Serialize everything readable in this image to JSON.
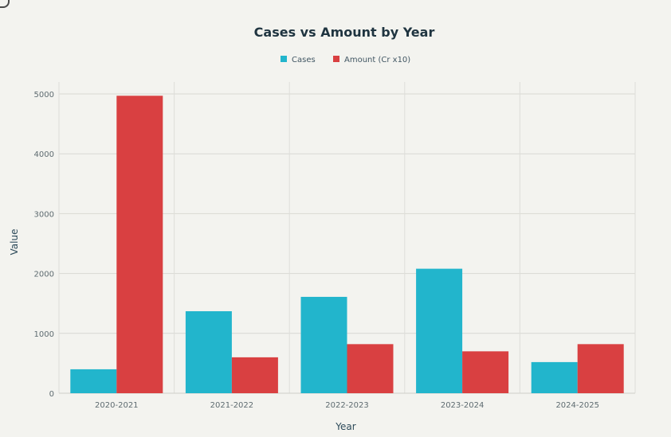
{
  "chart_data": {
    "type": "bar",
    "title": "Cases vs Amount by Year",
    "xlabel": "Year",
    "ylabel": "Value",
    "categories": [
      "2020-2021",
      "2021-2022",
      "2022-2023",
      "2023-2024",
      "2024-2025"
    ],
    "series": [
      {
        "name": "Cases",
        "color": "#22b5cc",
        "values": [
          400,
          1370,
          1610,
          2080,
          520
        ]
      },
      {
        "name": "Amount (Cr x10)",
        "color": "#d94041",
        "values": [
          4970,
          600,
          820,
          700,
          820
        ]
      }
    ],
    "ylim": [
      0,
      5200
    ],
    "yticks": [
      0,
      1000,
      2000,
      3000,
      4000,
      5000
    ],
    "legend_position": "top-center",
    "grid": true
  }
}
